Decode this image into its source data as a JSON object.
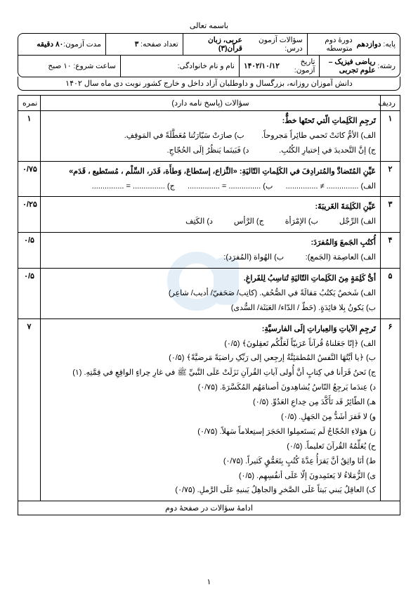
{
  "top_title": "باسمه تعالی",
  "header": {
    "r1c1_lbl": "پایه:",
    "r1c1_val": "دوازدهم",
    "r1c1b": "دورهٔ دوم متوسطه",
    "r1c2_lbl": "سؤالات آزمون درس:",
    "r1c2_val": "عربی، زبان قرآن(۳)",
    "r1c3_lbl": "تعداد صفحه:",
    "r1c3_val": "۳",
    "r1c4_lbl": "مدت آزمون:",
    "r1c4_val": "۸۰ دقیقه",
    "r2c1_lbl": "رشته:",
    "r2c1_val": "ریاضی فیزیک – علوم تجربی",
    "r2c2_lbl": "تاریخ آزمون:",
    "r2c2_val": "۱۴۰۲/۱۰/۱۲",
    "r2c3_lbl": "نام و نام خانوادگی:",
    "r2c4_lbl": "ساعت شروع: ۱۰ صبح"
  },
  "banner": "دانش آموزان روزانه، بزرگسال و داوطلبان آزاد داخل و خارج کشور نوبت دی ماه سال ۱۴۰۲",
  "col_row": "ردیف",
  "col_body": "سؤالات (پاسخ نامه دارد)",
  "col_score": "نمره",
  "rows": [
    {
      "n": "۱",
      "score": "۱",
      "title": "تَرجِمِ الکَلِماتِ الّتي تَحتَها خطٌّ:",
      "lines": [
        "الف) الأمُّ کانَتْ تَحمي طائِراً مَجروحاً.        ب) صارَتْ سَیّارَتُنا مُعَطَّلَةً في المَوقِفِ.",
        "ج) إنَّ التَّحديدَ في إختیارِ الکُتُبِ.              د) فَبَینَما یَنظُرُ إلَی الحُجّاجِ."
      ]
    },
    {
      "n": "۲",
      "score": "۰/۷۵",
      "title": "عَیِّنِ المُتَضادَّ والمُترادِفَ في الکَلِماتِ التّالیَةِ:  «النِّزاع، إستَطاعَ، وَطأَة، قَدَر، السِّلْم ، مُستَطيع ، قَدَم»",
      "lines": [
        "الف) ............... ≠ ...............      ب) ............... = ...............      ج) ............... = ..............."
      ]
    },
    {
      "n": "۳",
      "score": "۰/۲۵",
      "title": "عَیِّنِ الکَلِمَةَ الغَريبَةَ:",
      "opts": [
        "الف) الرِّجْل",
        "ب) الإمْرَأة",
        "ج) الرَّأس",
        "د) الکَتِف"
      ]
    },
    {
      "n": "۴",
      "score": "۰/۵",
      "title": "أُکتُبِ الجَمعَ وَالمُفرَدَ:",
      "lines": [
        "الف) العاصِمَة (الجَمع):          ب) الهُواة (المُفرَد):"
      ]
    },
    {
      "n": "۵",
      "score": "۰/۵",
      "title": "أیُّ کَلِمَةٍ مِنَ الکَلِماتِ التّالیَةِ تُناسِبُ لِلفَراغِ.",
      "lines": [
        "الف) شَخصٌ یَکتُبُ مَقالَةً في الصُّحُفِ. (کاتِب/ صَحَفيّ/ أديب/ شاعِر)",
        "ب) یَکونُ بِلا فائِدَةٍ. (خَطّ / الدّاء/ العَبَثَة/ السُّدی)"
      ]
    },
    {
      "n": "۶",
      "score": "۷",
      "title": "تَرجِمِ الآیاتِ وَالعِباراتِ إلَی الفارسیَّةِ:",
      "lines": [
        "الف) ﴿إنّا جَعَلناهُ قُرآناً عَرَبیّاً لَعَلَّکُم تَعقِلونَ﴾ (۰/۵)",
        "ب) ﴿یا أیَّتُهَا النَّفسُ المُطمَئِنَّةُ إرجِعي إلی رَبِّکِ راضیَةً مَرضیَّةً﴾ (۰/۵)",
        "ج) نَحنُ قَرَأنا في کِتابٍ أنَّ أُولی آیاتِ القُرآنِ نَزَلَتْ عَلَی النَّبيِّ ﷺ في غارِ حِراءٍ الواقِعِ في قِمَّتِهِ. (۱)",
        "د) عِندَما یَرجِعُ النّاسُ یُشاهِدونَ أصنامَهُم المُکَسَّرَةَ. (۰/۷۵)",
        "هـ) الطّائِرُ قَد تَأَکَّدَ مِن خِداعِ العَدُوِّ. (۰/۵)",
        "و) لا فَقرَ أشَدُّ مِنَ الجَهلِ. (۰/۵)",
        "ز) هؤلاءِ الحُجّاجُ لَم یَستَعمِلوا الحَجَرَ إستِعلاماً سَهلاً. (۰/۷۵)",
        "ح) یُعَلِّمُهُ القُرآنَ تَعلیماً. (۰/۵)",
        "ط) أنَا واثِقٌ أنَّ یَقرَأُ عِدَّةَ کُتُبٍ بِتَعَمُّقٍ کَثیراً. (۰/۷۵)",
        "ی) الزُّمَلاءُ لا یَعتَمِدونَ إلّا عَلَی أنفُسِهِم. (۰/۵)",
        "ک) العاقِلُ یَبني بَیتاً عَلَی الصَّخرِ وَالجاهِلُ یَبنیهِ عَلَی الرَّملِ. (۰/۷۵)"
      ]
    }
  ],
  "footer": "ادامهٔ سؤالات در صفحهٔ دوم",
  "page_num": "۱",
  "colors": {
    "border": "#000000",
    "bg": "#ffffff",
    "wm": "#6aa7d6"
  }
}
